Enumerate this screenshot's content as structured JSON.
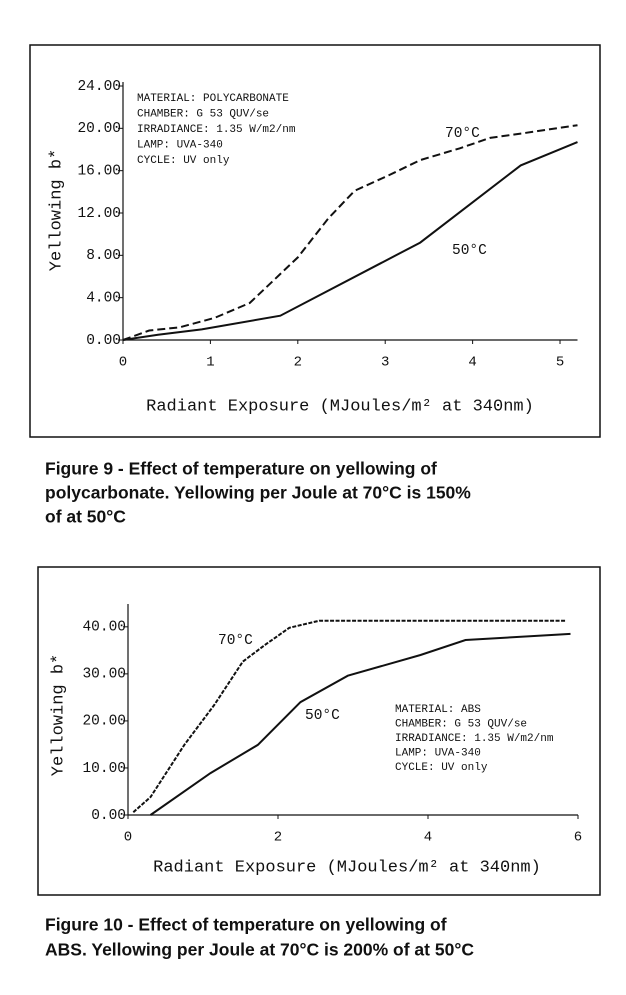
{
  "chart_data": [
    {
      "type": "line",
      "y_label": "Yellowing b*",
      "x_label": "Radiant Exposure (MJoules/m² at 340nm)",
      "annotations": [
        "MATERIAL:  POLYCARBONATE",
        "CHAMBER:  G 53  QUV/se",
        "IRRADIANCE: 1.35 W/m2/nm",
        "LAMP: UVA-340",
        "CYCLE: UV only"
      ],
      "caption": [
        "Figure 9 - Effect of temperature on yellowing of",
        "polycarbonate. Yellowing per Joule at 70°C is 150%",
        "of at 50°C"
      ],
      "xlim": [
        0,
        5.2
      ],
      "xticks": [
        0,
        1,
        2,
        3,
        4,
        5
      ],
      "ylim": [
        0,
        24
      ],
      "yticks": [
        {
          "value": 0,
          "label": "0.00"
        },
        {
          "value": 4,
          "label": "4.00"
        },
        {
          "value": 8,
          "label": "8.00"
        },
        {
          "value": 12,
          "label": "12.00"
        },
        {
          "value": 16,
          "label": "16.00"
        },
        {
          "value": 20,
          "label": "20.00"
        },
        {
          "value": 24,
          "label": "24.00"
        }
      ],
      "series": [
        {
          "name": "70°C",
          "color": "#111111",
          "dashed": true,
          "x": [
            0,
            0.3,
            0.65,
            1.05,
            1.45,
            2.0,
            2.35,
            2.65,
            3.05,
            3.4,
            3.85,
            4.2,
            4.55,
            5.2
          ],
          "values": [
            0,
            0.9,
            1.2,
            2.1,
            3.5,
            7.8,
            11.5,
            14.1,
            15.6,
            17.0,
            18.1,
            19.1,
            19.5,
            20.3
          ]
        },
        {
          "name": "50°C",
          "color": "#111111",
          "dashed": false,
          "x": [
            0,
            0.4,
            0.9,
            1.8,
            3.4,
            4.55,
            5.2
          ],
          "values": [
            0,
            0.5,
            1.0,
            2.3,
            9.2,
            16.5,
            18.7
          ]
        }
      ]
    },
    {
      "type": "line",
      "y_label": "Yellowing b*",
      "x_label": "Radiant Exposure (MJoules/m² at 340nm)",
      "annotations": [
        "MATERIAL: ABS",
        "CHAMBER:  G 53  QUV/se",
        "IRRADIANCE: 1.35 W/m2/nm",
        "LAMP: UVA-340",
        "CYCLE: UV only"
      ],
      "caption": [
        "Figure 10 - Effect of temperature on yellowing of",
        "ABS. Yellowing per Joule at 70°C is 200% of at 50°C"
      ],
      "xlim": [
        0,
        6
      ],
      "xticks": [
        0,
        2,
        4,
        6
      ],
      "ylim": [
        0,
        44
      ],
      "yticks": [
        {
          "value": 0,
          "label": "0.00"
        },
        {
          "value": 10,
          "label": "10.00"
        },
        {
          "value": 20,
          "label": "20.00"
        },
        {
          "value": 30,
          "label": "30.00"
        },
        {
          "value": 40,
          "label": "40.00"
        }
      ],
      "series": [
        {
          "name": "70°C",
          "color": "#111111",
          "dashed": true,
          "x": [
            0.07,
            0.3,
            0.75,
            1.15,
            1.53,
            1.83,
            2.15,
            2.55,
            5.83
          ],
          "values": [
            0.6,
            3.8,
            14.9,
            23.4,
            32.6,
            36.2,
            39.8,
            41.3,
            41.3
          ]
        },
        {
          "name": "50°C",
          "color": "#111111",
          "dashed": false,
          "x": [
            0.3,
            1.1,
            1.73,
            2.3,
            2.93,
            3.9,
            4.5,
            5.9
          ],
          "values": [
            0,
            8.9,
            14.9,
            24.0,
            29.6,
            34.0,
            37.2,
            38.5
          ]
        }
      ]
    }
  ]
}
